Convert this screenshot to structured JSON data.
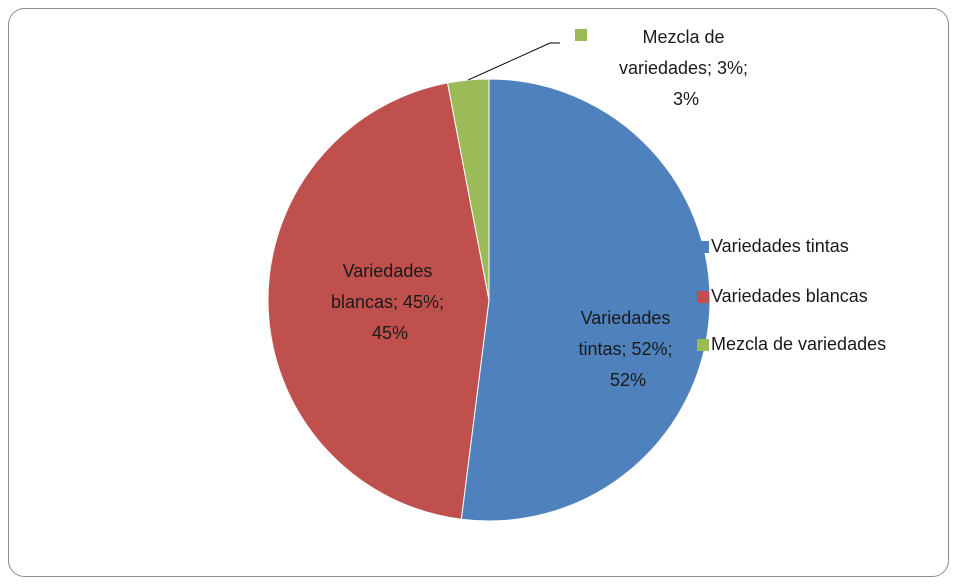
{
  "chart_data": {
    "type": "pie",
    "categories": [
      "Variedades tintas",
      "Variedades blancas",
      "Mezcla de variedades"
    ],
    "values": [
      52,
      45,
      3
    ],
    "value_labels": [
      "Variedades tintas; 52%; 52%",
      "Variedades blancas; 45%; 45%",
      "Mezcla de variedades; 3%; 3%"
    ],
    "colors": [
      "#4f81bd",
      "#c0504d",
      "#9bbb59"
    ],
    "legend": "right"
  }
}
